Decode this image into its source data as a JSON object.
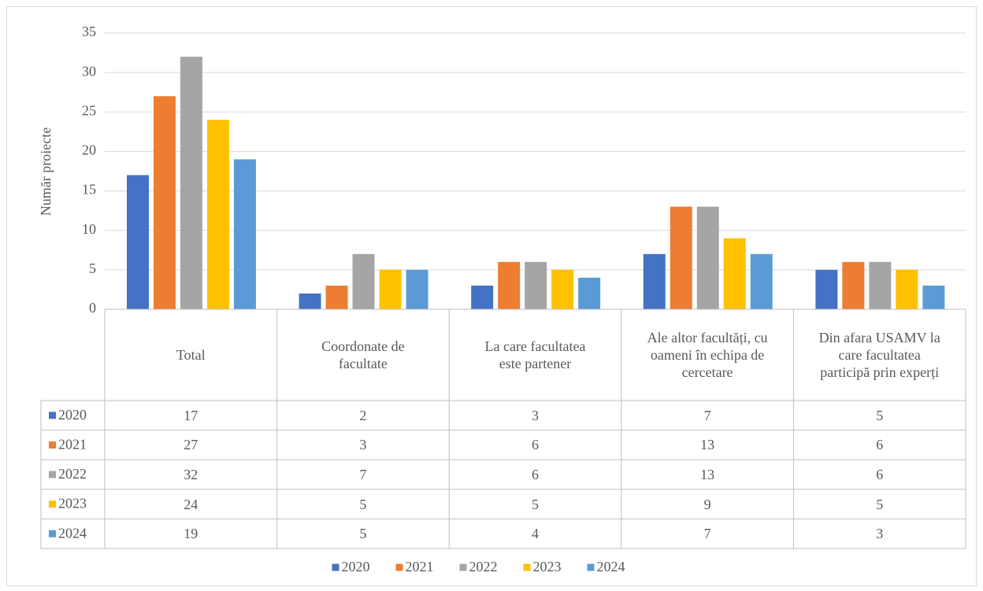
{
  "chart_data": {
    "type": "bar",
    "y_label": "Număr proiecte",
    "categories": [
      "Total",
      "Coordonate de facultate",
      "La care facultatea este partener",
      "Ale altor facultăți, cu oameni în echipa de cercetare",
      "Din afara USAMV la care facultatea participă prin experți"
    ],
    "series": [
      {
        "name": "2020",
        "color": "#4472c4",
        "values": [
          17,
          2,
          3,
          7,
          5
        ]
      },
      {
        "name": "2021",
        "color": "#ed7d31",
        "values": [
          27,
          3,
          6,
          13,
          6
        ]
      },
      {
        "name": "2022",
        "color": "#a5a5a5",
        "values": [
          32,
          7,
          6,
          13,
          6
        ]
      },
      {
        "name": "2023",
        "color": "#ffc000",
        "values": [
          24,
          5,
          5,
          9,
          5
        ]
      },
      {
        "name": "2024",
        "color": "#5b9bd5",
        "values": [
          19,
          5,
          4,
          7,
          3
        ]
      }
    ],
    "ylim": [
      0,
      35
    ],
    "yticks": [
      0,
      5,
      10,
      15,
      20,
      25,
      30,
      35
    ],
    "grid": true,
    "data_table": true,
    "legend": "bottom"
  }
}
